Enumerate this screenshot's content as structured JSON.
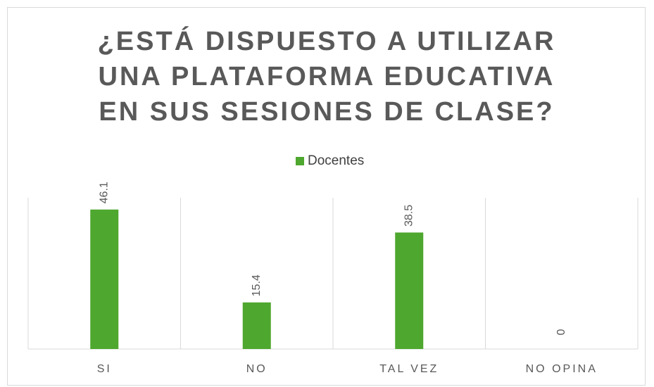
{
  "chart_data": {
    "type": "bar",
    "title": "¿ESTÁ DISPUESTO A UTILIZAR UNA PLATAFORMA EDUCATIVA EN SUS SESIONES DE CLASE?",
    "categories": [
      "SI",
      "NO",
      "TAL VEZ",
      "NO OPINA"
    ],
    "series": [
      {
        "name": "Docentes",
        "color": "#4ea72e",
        "values": [
          46.1,
          15.4,
          38.5,
          0
        ]
      }
    ],
    "ylim": [
      0,
      50
    ],
    "legend": "top"
  }
}
